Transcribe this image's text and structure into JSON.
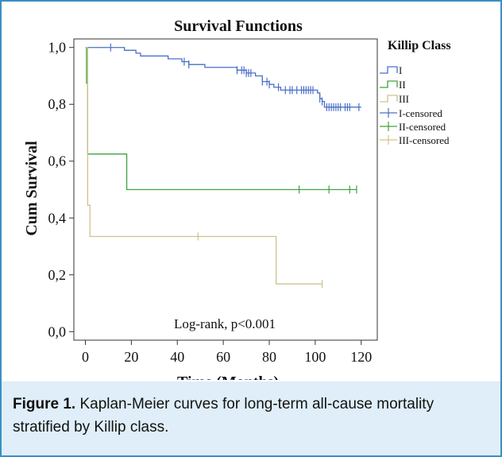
{
  "chart_data": {
    "type": "line",
    "title": "Survival Functions",
    "xlabel": "Time (Months)",
    "ylabel": "Cum Survival",
    "xlim": [
      -5,
      127
    ],
    "ylim": [
      -0.03,
      1.03
    ],
    "xticks": [
      0,
      20,
      40,
      60,
      80,
      100,
      120
    ],
    "yticks": [
      0.0,
      0.2,
      0.4,
      0.6,
      0.8,
      1.0
    ],
    "yticklabels": [
      "0,0",
      "0,2",
      "0,4",
      "0,6",
      "0,8",
      "1,0"
    ],
    "legend_title": "Killip Class",
    "legend_position": "top-right",
    "annotation": "Log-rank, p<0.001",
    "series": [
      {
        "name": "I",
        "color": "#4a6fc9",
        "steps": [
          [
            0,
            1.0
          ],
          [
            17,
            0.99
          ],
          [
            22,
            0.98
          ],
          [
            24,
            0.97
          ],
          [
            36,
            0.96
          ],
          [
            42,
            0.95
          ],
          [
            45,
            0.94
          ],
          [
            52,
            0.93
          ],
          [
            66,
            0.92
          ],
          [
            70,
            0.91
          ],
          [
            74,
            0.9
          ],
          [
            77,
            0.88
          ],
          [
            80,
            0.87
          ],
          [
            82,
            0.86
          ],
          [
            85,
            0.85
          ],
          [
            101,
            0.84
          ],
          [
            102,
            0.82
          ],
          [
            103,
            0.81
          ],
          [
            104,
            0.79
          ],
          [
            120,
            0.79
          ]
        ],
        "censored": [
          11,
          43,
          45,
          66,
          68,
          69,
          70,
          71,
          72,
          77,
          79,
          80,
          84,
          87,
          89,
          90,
          92,
          94,
          95,
          96,
          97,
          98,
          99,
          102,
          103,
          105,
          106,
          107,
          108,
          109,
          110,
          111,
          113,
          114,
          115,
          119
        ]
      },
      {
        "name": "II",
        "color": "#3fa33f",
        "steps": [
          [
            0,
            1.0
          ],
          [
            0.5,
            0.875
          ],
          [
            1,
            0.625
          ],
          [
            18,
            0.5
          ],
          [
            118,
            0.5
          ]
        ],
        "censored": [
          93,
          106,
          115,
          118
        ]
      },
      {
        "name": "III",
        "color": "#d2c08f",
        "steps": [
          [
            0,
            1.0
          ],
          [
            1,
            0.445
          ],
          [
            2,
            0.335
          ],
          [
            83,
            0.168
          ],
          [
            103,
            0.168
          ]
        ],
        "censored": [
          49,
          103
        ]
      }
    ],
    "censored_legend": [
      "I-censored",
      "II-censored",
      "III-censored"
    ]
  },
  "caption": {
    "label": "Figure 1.",
    "text": " Kaplan-Meier curves for long-term all-cause mortality stratified by Killip class."
  }
}
